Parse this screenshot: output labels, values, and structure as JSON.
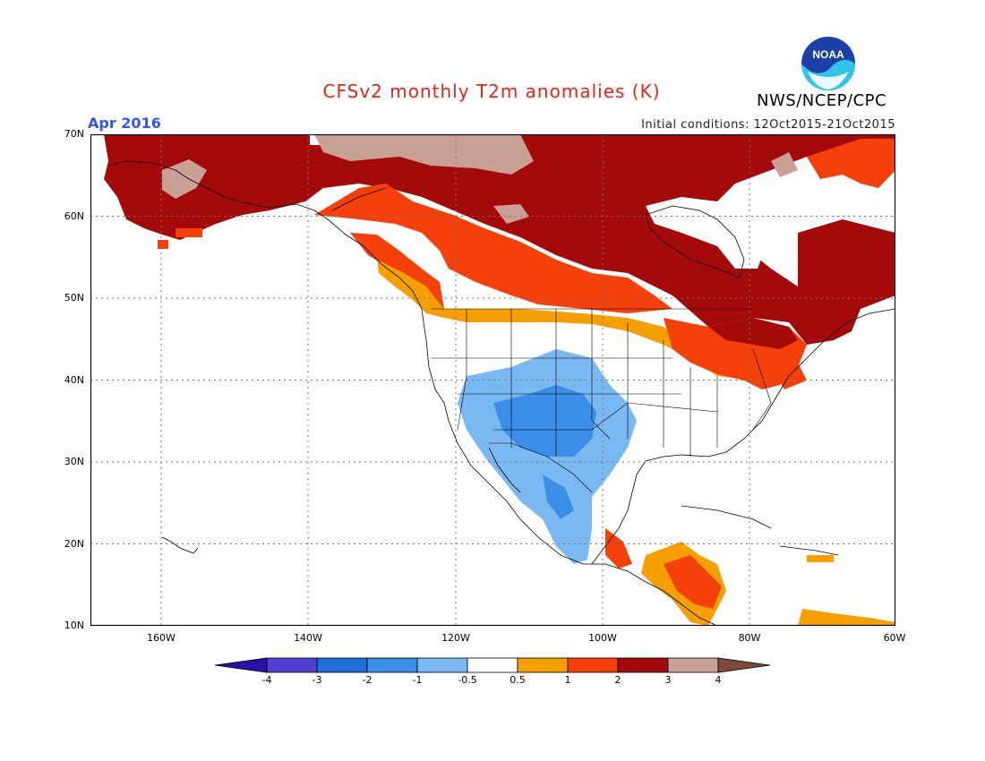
{
  "header": {
    "title": "CFSv2 monthly T2m anomalies (K)",
    "month": "Apr 2016",
    "initial_conditions": "Initial conditions: 12Oct2015-21Oct2015",
    "agency": "NWS/NCEP/CPC",
    "logo_text": "NOAA"
  },
  "map": {
    "lat_labels": [
      "70N",
      "60N",
      "50N",
      "40N",
      "30N",
      "20N",
      "10N"
    ],
    "lon_labels": [
      "160W",
      "140W",
      "120W",
      "100W",
      "80W",
      "60W"
    ]
  },
  "legend": {
    "tick_labels": [
      "-4",
      "-3",
      "-2",
      "-1",
      "-0.5",
      "0.5",
      "1",
      "2",
      "3",
      "4"
    ],
    "colors": [
      "#2a10a8",
      "#5040d2",
      "#1e6ed8",
      "#3a8ee8",
      "#7ab8f2",
      "#ffffff",
      "#f5a000",
      "#f6400a",
      "#a50a0a",
      "#c8a096",
      "#7b4b3a"
    ]
  }
}
